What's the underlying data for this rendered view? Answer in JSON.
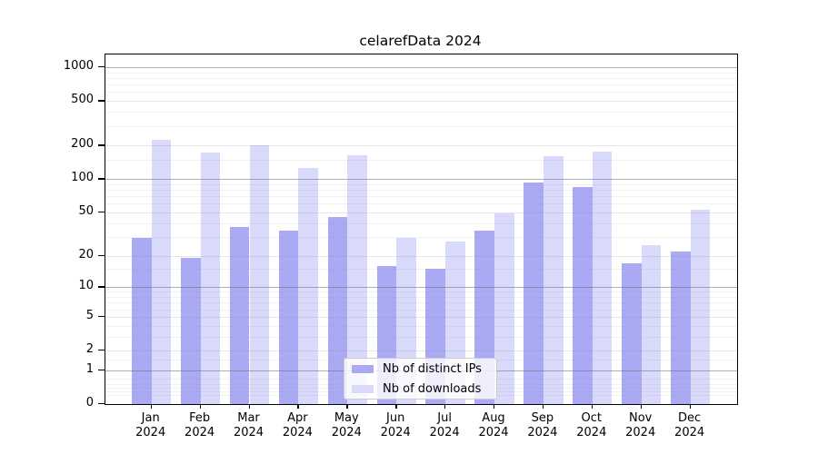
{
  "title": "celarefData 2024",
  "chart_data": {
    "type": "bar",
    "title": "celarefData 2024",
    "categories": [
      "Jan 2024",
      "Feb 2024",
      "Mar 2024",
      "Apr 2024",
      "May 2024",
      "Jun 2024",
      "Jul 2024",
      "Aug 2024",
      "Sep 2024",
      "Oct 2024",
      "Nov 2024",
      "Dec 2024"
    ],
    "series": [
      {
        "name": "Nb of distinct IPs",
        "color": "#a9a9f4",
        "values": [
          29,
          19,
          37,
          34,
          45,
          16,
          15,
          34,
          93,
          85,
          17,
          22
        ]
      },
      {
        "name": "Nb of downloads",
        "color": "#d9d9fb",
        "values": [
          225,
          172,
          200,
          125,
          163,
          29,
          27,
          49,
          162,
          176,
          25,
          53
        ]
      }
    ],
    "xlabel": "",
    "ylabel": "",
    "y_scale": "log1p",
    "ylim": [
      0,
      1300
    ],
    "y_ticks": [
      0,
      1,
      2,
      5,
      10,
      20,
      50,
      100,
      200,
      500,
      1000
    ],
    "y_major_gridlines": [
      1,
      10,
      100,
      1000
    ],
    "y_mid_gridlines": [
      2,
      5,
      20,
      50,
      200,
      500
    ],
    "y_minor_gridlines": [
      0.2,
      0.3,
      0.4,
      0.5,
      0.7,
      1.5,
      3,
      4,
      6,
      7,
      8,
      9,
      15,
      30,
      40,
      60,
      70,
      80,
      90,
      150,
      300,
      400,
      600,
      700,
      800,
      900
    ],
    "grid": true,
    "legend_position": "lower center inside"
  },
  "colors": {
    "background": "#ffffff",
    "bar_distinct_ips": "#a9a9f4",
    "bar_downloads": "#d9d9fb",
    "axis": "#000000",
    "legend_border": "#cccccc"
  }
}
